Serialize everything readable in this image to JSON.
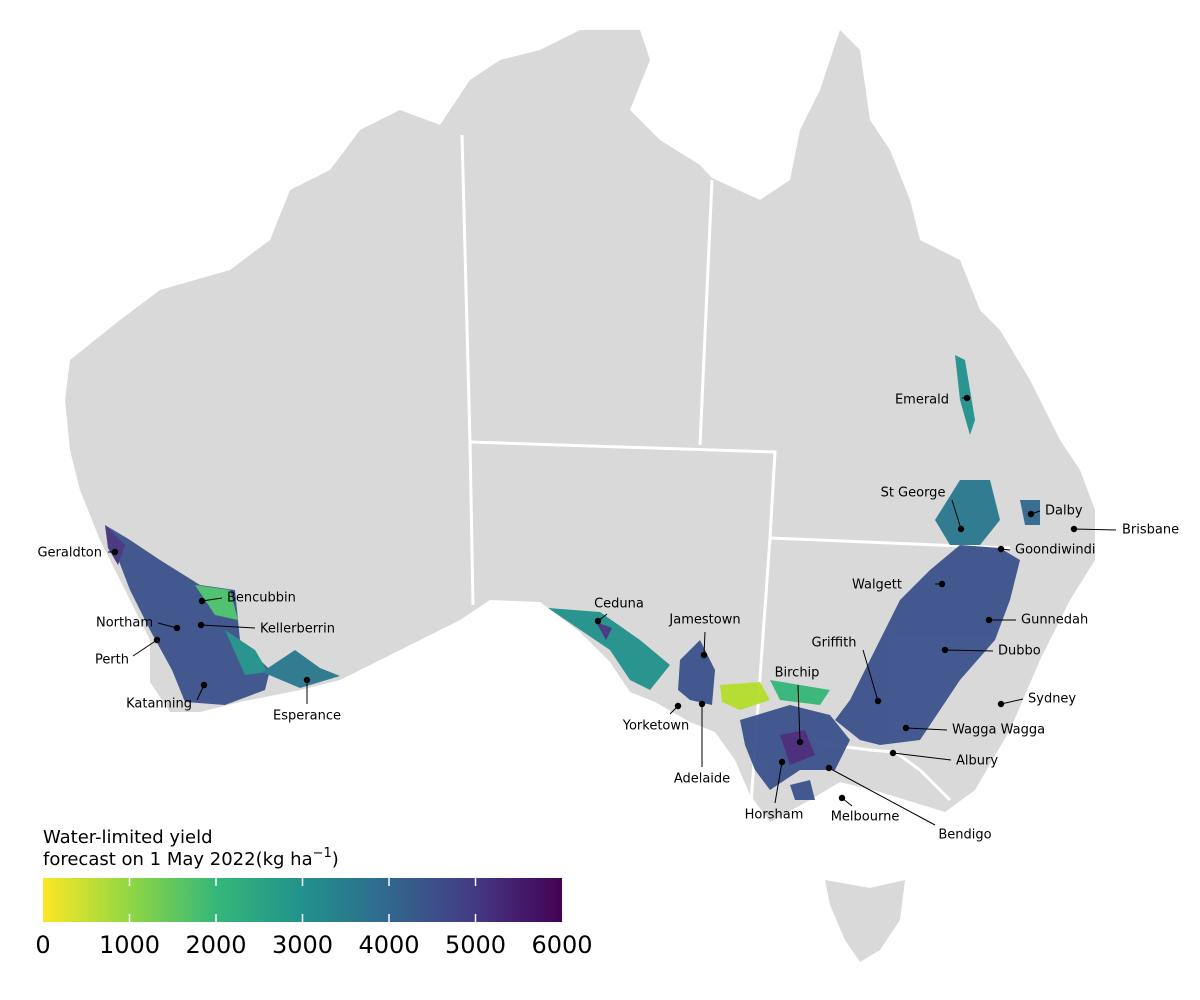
{
  "legend": {
    "title_line1": "Water-limited yield",
    "title_line2": "forecast on  1 May 2022(kg ha",
    "title_sup": "−1",
    "title_end": ")",
    "type": "colorbar",
    "lim": [
      0,
      6000
    ],
    "ticks": [
      0,
      1000,
      2000,
      3000,
      4000,
      5000,
      6000
    ],
    "colors": [
      "#fde725",
      "#90d743",
      "#35b779",
      "#21918c",
      "#31688e",
      "#443983",
      "#440154"
    ]
  },
  "towns": [
    "Geraldton",
    "Bencubbin",
    "Northam",
    "Kellerberrin",
    "Perth",
    "Katanning",
    "Esperance",
    "Ceduna",
    "Jamestown",
    "Yorketown",
    "Adelaide",
    "Birchip",
    "Horsham",
    "Melbourne",
    "Bendigo",
    "Emerald",
    "St George",
    "Dalby",
    "Brisbane",
    "Goondiwindi",
    "Walgett",
    "Gunnedah",
    "Dubbo",
    "Griffith",
    "Sydney",
    "Wagga Wagga",
    "Albury"
  ]
}
